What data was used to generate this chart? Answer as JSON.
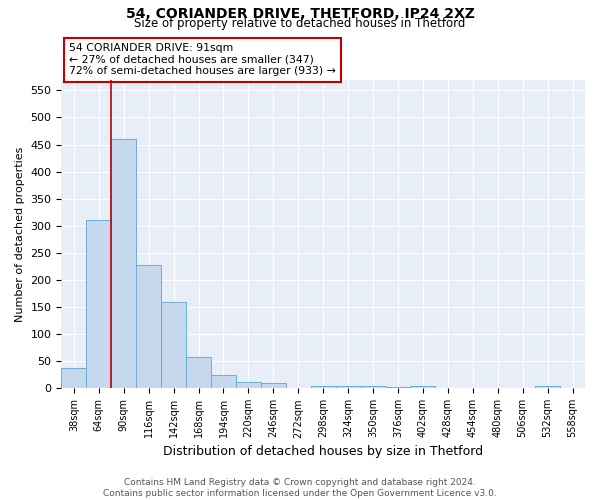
{
  "title1": "54, CORIANDER DRIVE, THETFORD, IP24 2XZ",
  "title2": "Size of property relative to detached houses in Thetford",
  "xlabel": "Distribution of detached houses by size in Thetford",
  "ylabel": "Number of detached properties",
  "footnote": "Contains HM Land Registry data © Crown copyright and database right 2024.\nContains public sector information licensed under the Open Government Licence v3.0.",
  "bin_labels": [
    "38sqm",
    "64sqm",
    "90sqm",
    "116sqm",
    "142sqm",
    "168sqm",
    "194sqm",
    "220sqm",
    "246sqm",
    "272sqm",
    "298sqm",
    "324sqm",
    "350sqm",
    "376sqm",
    "402sqm",
    "428sqm",
    "454sqm",
    "480sqm",
    "506sqm",
    "532sqm",
    "558sqm"
  ],
  "bar_values": [
    38,
    310,
    460,
    228,
    160,
    57,
    25,
    12,
    9,
    0,
    5,
    5,
    5,
    2,
    5,
    0,
    0,
    0,
    0,
    5,
    0
  ],
  "bar_color": "#c5d8ee",
  "bar_edge_color": "#6aaed6",
  "vline_color": "#c00000",
  "annotation_text": "54 CORIANDER DRIVE: 91sqm\n← 27% of detached houses are smaller (347)\n72% of semi-detached houses are larger (933) →",
  "annotation_box_color": "#ffffff",
  "annotation_box_edge": "#c00000",
  "ylim": [
    0,
    570
  ],
  "background_color": "#e8eef7"
}
